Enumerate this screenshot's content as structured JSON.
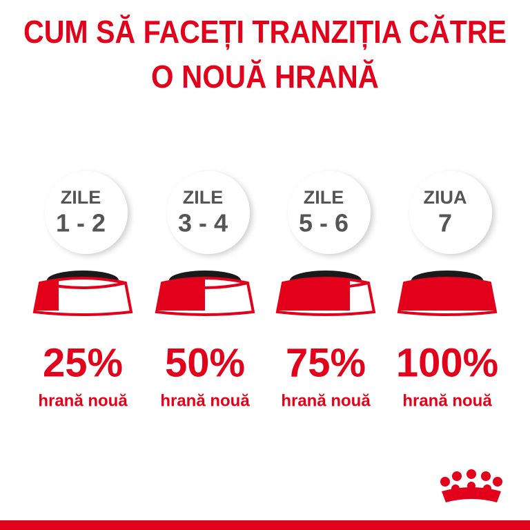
{
  "title_lines": [
    "CUM SĂ FACEȚI TRANZIȚIA CĂTRE",
    "O NOUĂ HRANĂ"
  ],
  "steps": [
    {
      "label": "ZILE",
      "days": "1 - 2",
      "share": 25,
      "share_label": "25%",
      "caption": "hrană nouă"
    },
    {
      "label": "ZILE",
      "days": "3 - 4",
      "share": 50,
      "share_label": "50%",
      "caption": "hrană nouă"
    },
    {
      "label": "ZILE",
      "days": "5 - 6",
      "share": 75,
      "share_label": "75%",
      "caption": "hrană nouă"
    },
    {
      "label": "ZIUA",
      "days": "7",
      "share": 100,
      "share_label": "100%",
      "caption": "hrană nouă"
    }
  ]
}
